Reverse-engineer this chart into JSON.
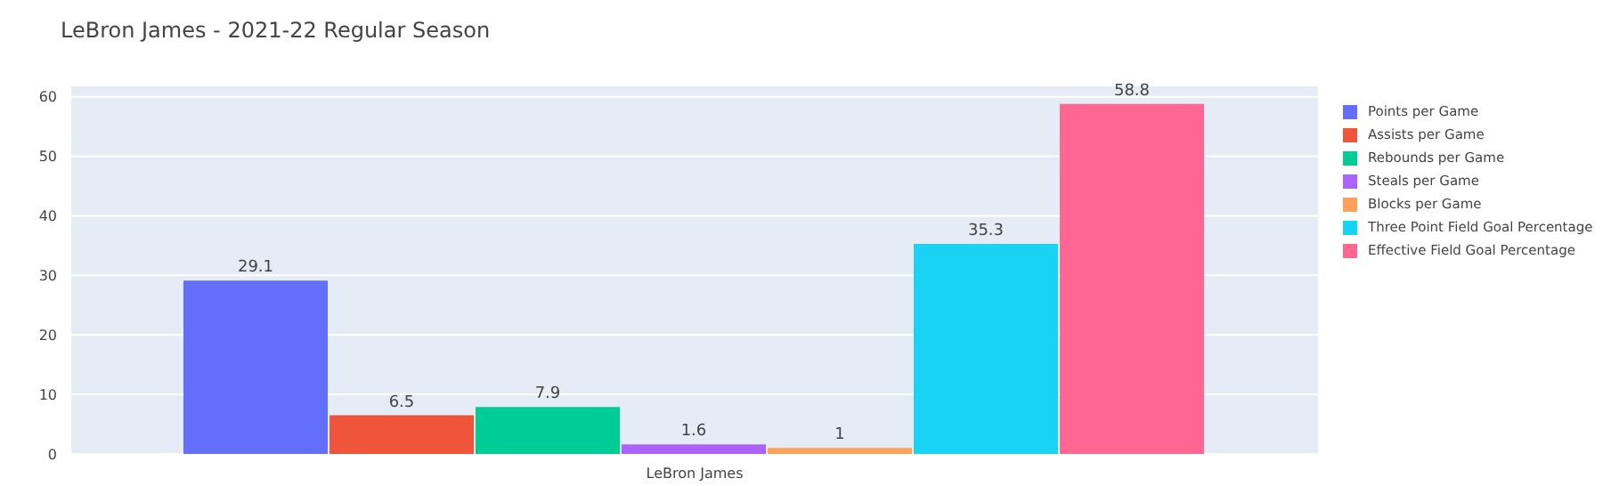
{
  "chart_data": {
    "type": "bar",
    "title": "LeBron James - 2021-22 Regular Season",
    "categories": [
      "LeBron James"
    ],
    "series": [
      {
        "name": "Points per Game",
        "color": "#636efa",
        "values": [
          29.1
        ]
      },
      {
        "name": "Assists per Game",
        "color": "#ef553b",
        "values": [
          6.5
        ]
      },
      {
        "name": "Rebounds per Game",
        "color": "#00cc96",
        "values": [
          7.9
        ]
      },
      {
        "name": "Steals per Game",
        "color": "#ab63fa",
        "values": [
          1.6
        ]
      },
      {
        "name": "Blocks per Game",
        "color": "#ffa15a",
        "values": [
          1
        ]
      },
      {
        "name": "Three Point Field Goal Percentage",
        "color": "#19d3f3",
        "values": [
          35.3
        ]
      },
      {
        "name": "Effective Field Goal Percentage",
        "color": "#ff6692",
        "values": [
          58.8
        ]
      }
    ],
    "ylim": [
      0,
      61.9
    ],
    "yticks": [
      0,
      10,
      20,
      30,
      40,
      50,
      60
    ],
    "grid": "y",
    "legend": "top right",
    "data_labels": true
  }
}
